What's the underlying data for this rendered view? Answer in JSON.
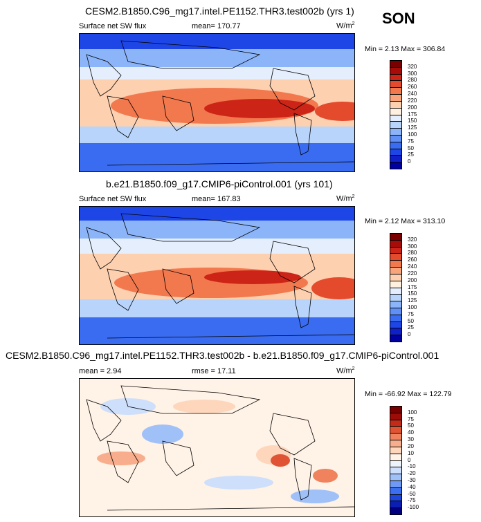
{
  "season": "SON",
  "panels": [
    {
      "title": "CESM2.B1850.C96_mg17.intel.PE1152.THR3.test002b (yrs 1)",
      "left_label": "Surface net SW flux",
      "center_label": "mean=  170.77",
      "units": "W/m",
      "units_sup": "2",
      "minmax": "Min =  2.13 Max = 306.84",
      "colorbar_ticks": [
        "320",
        "300",
        "280",
        "260",
        "240",
        "220",
        "200",
        "175",
        "150",
        "125",
        "100",
        "75",
        "50",
        "25",
        "0"
      ],
      "colorbar_colors": [
        "#0000a0",
        "#1020c8",
        "#1e46e6",
        "#3a6cf2",
        "#6090f5",
        "#8cb4f8",
        "#b8d4fa",
        "#e4eefc",
        "#fff0e0",
        "#fdd0b0",
        "#f9a47a",
        "#f2784e",
        "#e44a2c",
        "#cc2416",
        "#a80c08",
        "#7a0000"
      ]
    },
    {
      "title": "b.e21.B1850.f09_g17.CMIP6-piControl.001 (yrs 101)",
      "left_label": "Surface net SW flux",
      "center_label": "mean=  167.83",
      "units": "W/m",
      "units_sup": "2",
      "minmax": "Min =  2.12 Max = 313.10",
      "colorbar_ticks": [
        "320",
        "300",
        "280",
        "260",
        "240",
        "220",
        "200",
        "175",
        "150",
        "125",
        "100",
        "75",
        "50",
        "25",
        "0"
      ],
      "colorbar_colors": [
        "#0000a0",
        "#1020c8",
        "#1e46e6",
        "#3a6cf2",
        "#6090f5",
        "#8cb4f8",
        "#b8d4fa",
        "#e4eefc",
        "#fff0e0",
        "#fdd0b0",
        "#f9a47a",
        "#f2784e",
        "#e44a2c",
        "#cc2416",
        "#a80c08",
        "#7a0000"
      ]
    },
    {
      "title": "CESM2.B1850.C96_mg17.intel.PE1152.THR3.test002b - b.e21.B1850.f09_g17.CMIP6-piControl.001",
      "left_label": "mean =   2.94",
      "center_label": "rmse =  17.11",
      "units": "W/m",
      "units_sup": "2",
      "minmax": "Min = -66.92 Max = 122.79",
      "colorbar_ticks": [
        "100",
        "75",
        "50",
        "40",
        "30",
        "20",
        "10",
        "0",
        "-10",
        "-20",
        "-30",
        "-40",
        "-50",
        "-75",
        "-100"
      ],
      "colorbar_colors": [
        "#000080",
        "#0a1eb4",
        "#1e46dc",
        "#3c6ef0",
        "#6e9af5",
        "#a0c0f8",
        "#cddffa",
        "#eef4fc",
        "#fff2e6",
        "#fdd6bc",
        "#f8ae8c",
        "#f0825e",
        "#e05434",
        "#c42a18",
        "#9e0c08",
        "#780000"
      ]
    }
  ],
  "chart_data": [
    {
      "type": "heatmap",
      "title": "CESM2.B1850.C96_mg17.intel.PE1152.THR3.test002b (yrs 1)",
      "variable": "Surface net SW flux",
      "units": "W/m2",
      "mean": 170.77,
      "min": 2.13,
      "max": 306.84,
      "levels": [
        0,
        25,
        50,
        75,
        100,
        125,
        150,
        175,
        200,
        220,
        240,
        260,
        280,
        300,
        320
      ]
    },
    {
      "type": "heatmap",
      "title": "b.e21.B1850.f09_g17.CMIP6-piControl.001 (yrs 101)",
      "variable": "Surface net SW flux",
      "units": "W/m2",
      "mean": 167.83,
      "min": 2.12,
      "max": 313.1,
      "levels": [
        0,
        25,
        50,
        75,
        100,
        125,
        150,
        175,
        200,
        220,
        240,
        260,
        280,
        300,
        320
      ]
    },
    {
      "type": "heatmap",
      "title": "CESM2.B1850.C96_mg17.intel.PE1152.THR3.test002b - b.e21.B1850.f09_g17.CMIP6-piControl.001",
      "units": "W/m2",
      "mean": 2.94,
      "rmse": 17.11,
      "min": -66.92,
      "max": 122.79,
      "levels": [
        -100,
        -75,
        -50,
        -40,
        -30,
        -20,
        -10,
        0,
        10,
        20,
        30,
        40,
        50,
        75,
        100
      ]
    }
  ]
}
